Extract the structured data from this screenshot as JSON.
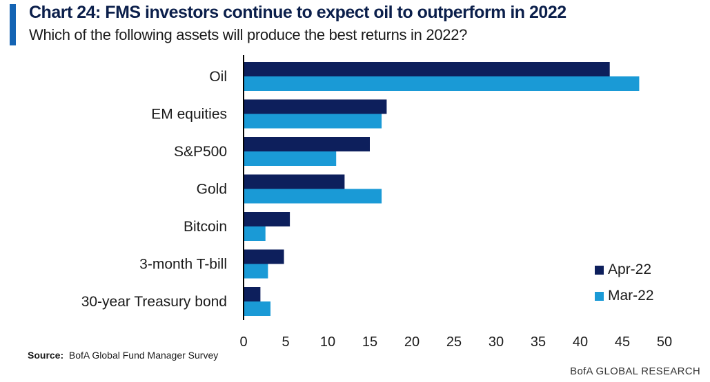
{
  "header": {
    "title": "Chart 24: FMS investors continue to expect oil to outperform in 2022",
    "subtitle": "Which of the following assets will produce the best returns in 2022?"
  },
  "footer": {
    "source_label": "Source:",
    "source_text": "BofA Global Fund Manager Survey",
    "brand": "BofA GLOBAL RESEARCH"
  },
  "colors": {
    "accent": "#1464b4",
    "series_apr": "#0d1f5c",
    "series_mar": "#1a9ad6"
  },
  "chart_data": {
    "type": "bar",
    "orientation": "horizontal",
    "title": "Chart 24: FMS investors continue to expect oil to outperform in 2022",
    "subtitle": "Which of the following assets will produce the best returns in 2022?",
    "categories": [
      "Oil",
      "EM equities",
      "S&P500",
      "Gold",
      "Bitcoin",
      "3-month T-bill",
      "30-year Treasury bond"
    ],
    "series": [
      {
        "name": "Apr-22",
        "color": "#0d1f5c",
        "values": [
          43.5,
          17,
          15,
          12,
          5.5,
          4.8,
          2
        ]
      },
      {
        "name": "Mar-22",
        "color": "#1a9ad6",
        "values": [
          47,
          16.4,
          11,
          16.4,
          2.6,
          2.9,
          3.2
        ]
      }
    ],
    "xlim": [
      0,
      50
    ],
    "xticks": [
      0,
      5,
      10,
      15,
      20,
      25,
      30,
      35,
      40,
      45,
      50
    ],
    "grid": false,
    "legend_position": "bottom-right"
  }
}
